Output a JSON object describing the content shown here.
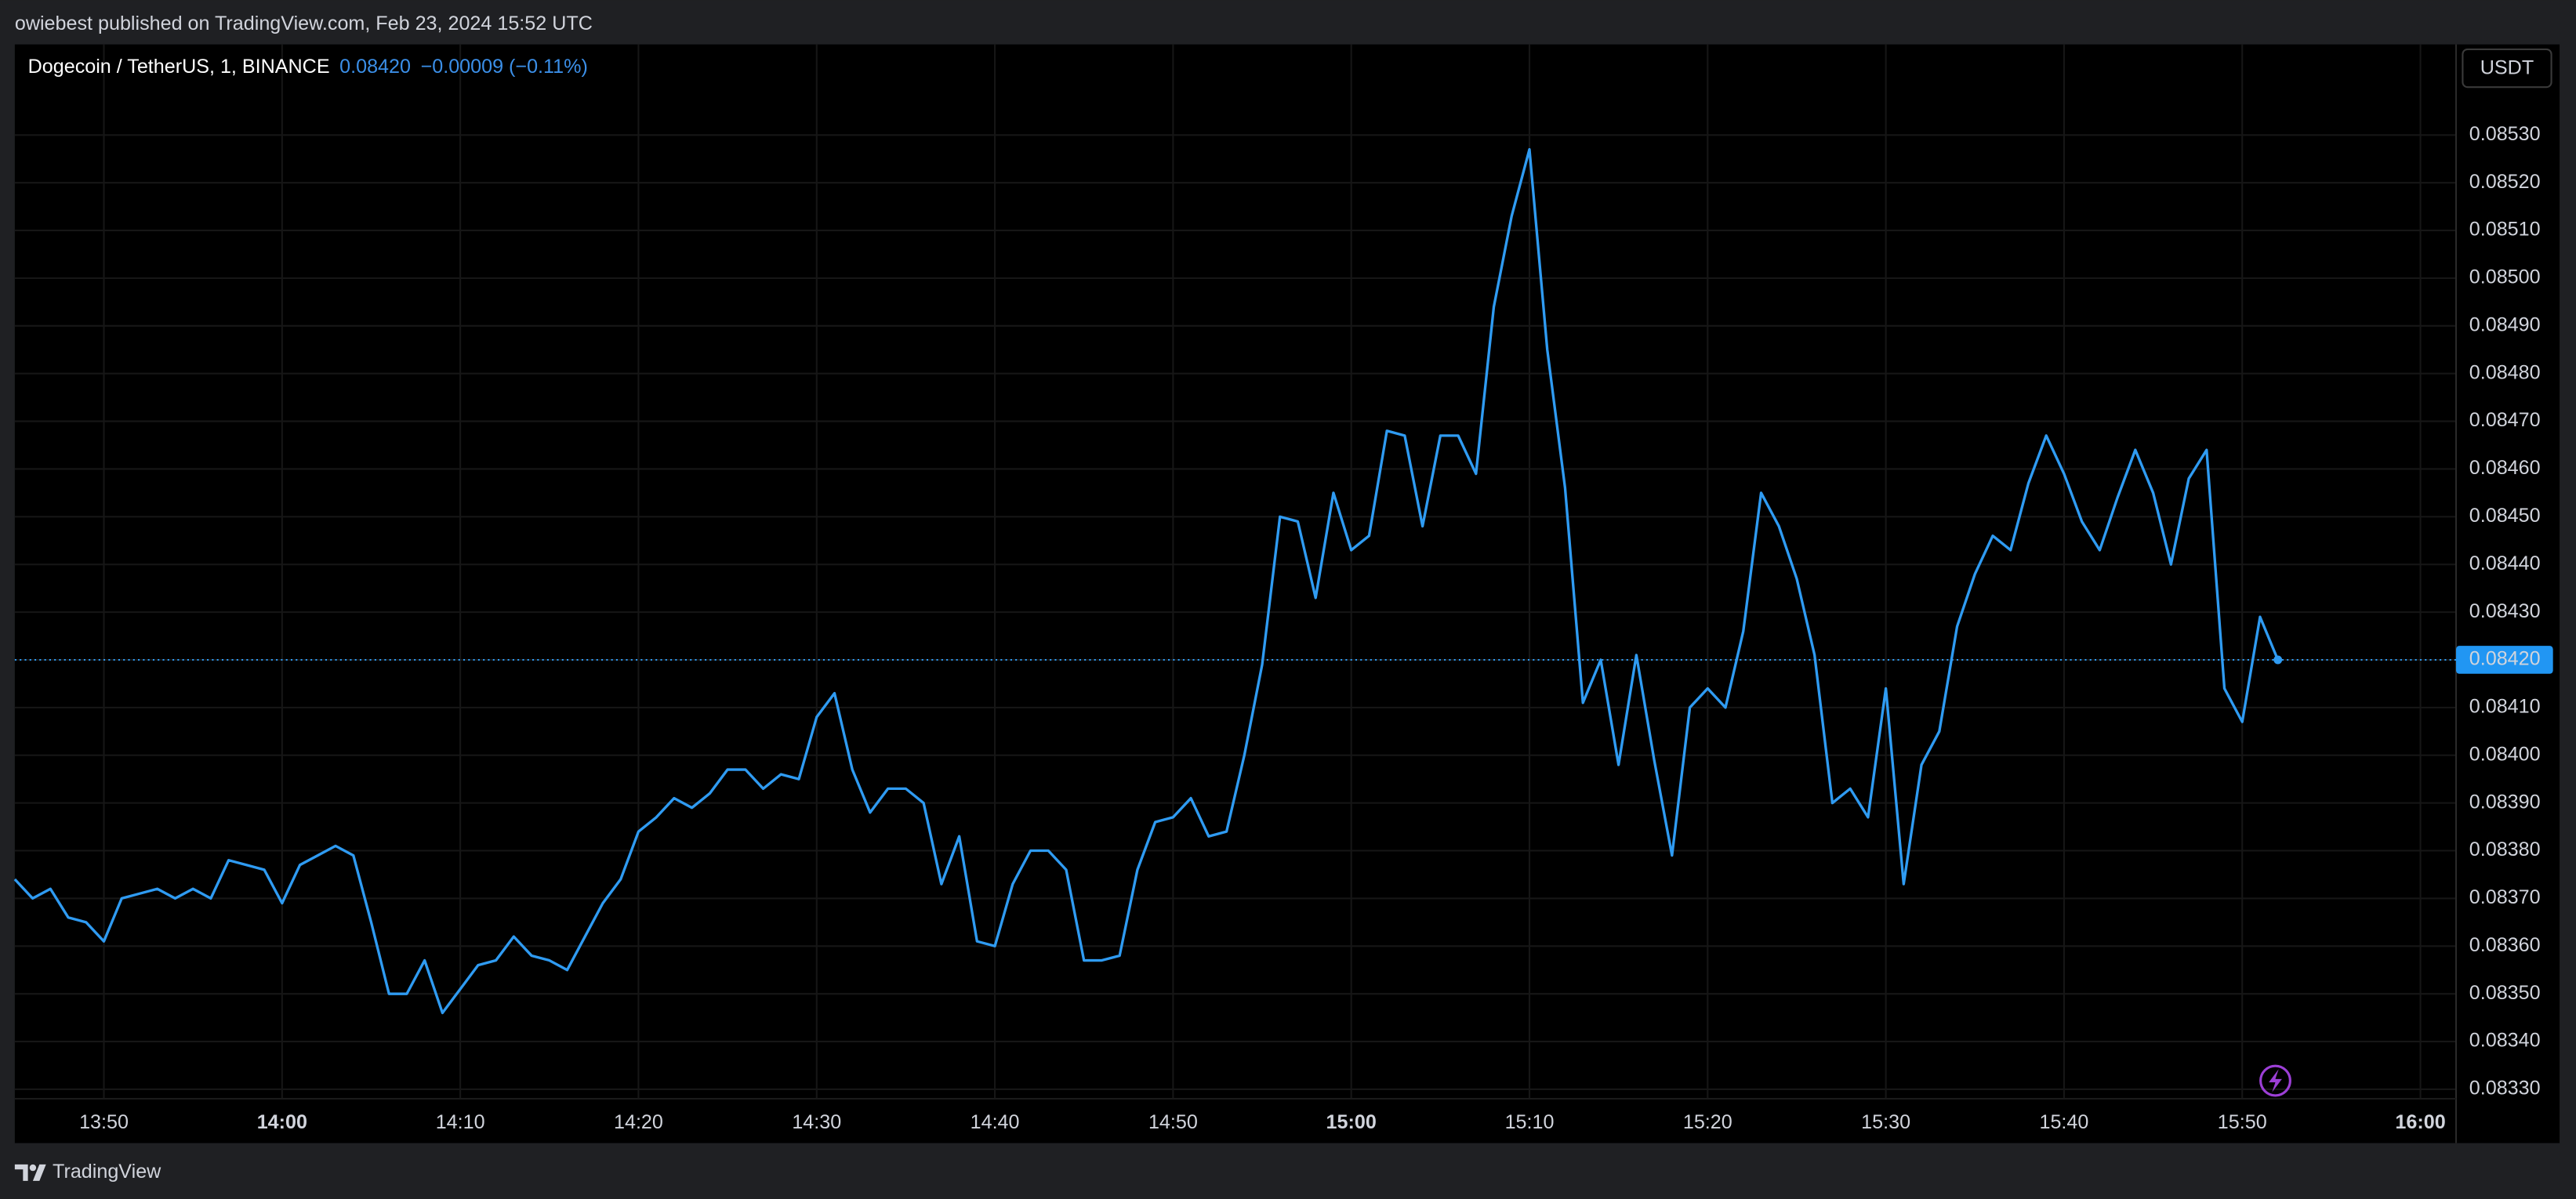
{
  "header": "owiebest published on TradingView.com, Feb 23, 2024 15:52 UTC",
  "footer_brand": "TradingView",
  "currency": "USDT",
  "chart_data": {
    "type": "line",
    "legend_last": "0.08420",
    "legend_change": "−0.00009 (−0.11%)",
    "last_price": {
      "value": 0.0842,
      "label": "0.08420"
    },
    "grid": true,
    "x": [
      "13:45",
      "13:46",
      "13:47",
      "13:48",
      "13:49",
      "13:50",
      "13:51",
      "13:52",
      "13:53",
      "13:54",
      "13:55",
      "13:56",
      "13:57",
      "13:58",
      "13:59",
      "14:00",
      "14:01",
      "14:02",
      "14:03",
      "14:04",
      "14:05",
      "14:06",
      "14:07",
      "14:08",
      "14:09",
      "14:10",
      "14:11",
      "14:12",
      "14:13",
      "14:14",
      "14:15",
      "14:16",
      "14:17",
      "14:18",
      "14:19",
      "14:20",
      "14:21",
      "14:22",
      "14:23",
      "14:24",
      "14:25",
      "14:26",
      "14:27",
      "14:28",
      "14:29",
      "14:30",
      "14:31",
      "14:32",
      "14:33",
      "14:34",
      "14:35",
      "14:36",
      "14:37",
      "14:38",
      "14:39",
      "14:40",
      "14:41",
      "14:42",
      "14:43",
      "14:44",
      "14:45",
      "14:46",
      "14:47",
      "14:48",
      "14:49",
      "14:50",
      "14:51",
      "14:52",
      "14:53",
      "14:54",
      "14:55",
      "14:56",
      "14:57",
      "14:58",
      "14:59",
      "15:00",
      "15:01",
      "15:02",
      "15:03",
      "15:04",
      "15:05",
      "15:06",
      "15:07",
      "15:08",
      "15:09",
      "15:10",
      "15:11",
      "15:12",
      "15:13",
      "15:14",
      "15:15",
      "15:16",
      "15:17",
      "15:18",
      "15:19",
      "15:20",
      "15:21",
      "15:22",
      "15:23",
      "15:24",
      "15:25",
      "15:26",
      "15:27",
      "15:28",
      "15:29",
      "15:30",
      "15:31",
      "15:32",
      "15:33",
      "15:34",
      "15:35",
      "15:36",
      "15:37",
      "15:38",
      "15:39",
      "15:40",
      "15:41",
      "15:42",
      "15:43",
      "15:44",
      "15:45",
      "15:46",
      "15:47",
      "15:48",
      "15:49",
      "15:50",
      "15:51",
      "15:52"
    ],
    "series": [
      {
        "name": "Dogecoin / TetherUS, 1, BINANCE",
        "color": "#2f9bf2",
        "values": [
          0.08374,
          0.0837,
          0.08372,
          0.08366,
          0.08365,
          0.08361,
          0.0837,
          0.08371,
          0.08372,
          0.0837,
          0.08372,
          0.0837,
          0.08378,
          0.08377,
          0.08376,
          0.08369,
          0.08377,
          0.08379,
          0.08381,
          0.08379,
          0.08365,
          0.0835,
          0.0835,
          0.08357,
          0.08346,
          0.08351,
          0.08356,
          0.08357,
          0.08362,
          0.08358,
          0.08357,
          0.08355,
          0.08362,
          0.08369,
          0.08374,
          0.08384,
          0.08387,
          0.08391,
          0.08389,
          0.08392,
          0.08397,
          0.08397,
          0.08393,
          0.08396,
          0.08395,
          0.08408,
          0.08413,
          0.08397,
          0.08388,
          0.08393,
          0.08393,
          0.0839,
          0.08373,
          0.08383,
          0.08361,
          0.0836,
          0.08373,
          0.0838,
          0.0838,
          0.08376,
          0.08357,
          0.08357,
          0.08358,
          0.08376,
          0.08386,
          0.08387,
          0.08391,
          0.08383,
          0.08384,
          0.084,
          0.08419,
          0.0845,
          0.08449,
          0.08433,
          0.08455,
          0.08443,
          0.08446,
          0.08468,
          0.08467,
          0.08448,
          0.08467,
          0.08467,
          0.08459,
          0.08494,
          0.08513,
          0.08527,
          0.08485,
          0.08456,
          0.08411,
          0.0842,
          0.08398,
          0.08421,
          0.08399,
          0.08379,
          0.0841,
          0.08414,
          0.0841,
          0.08426,
          0.08455,
          0.08448,
          0.08437,
          0.08421,
          0.0839,
          0.08393,
          0.08387,
          0.08414,
          0.08373,
          0.08398,
          0.08405,
          0.08427,
          0.08438,
          0.08446,
          0.08443,
          0.08457,
          0.08467,
          0.08459,
          0.08449,
          0.08443,
          0.08454,
          0.08464,
          0.08455,
          0.0844,
          0.08458,
          0.08464,
          0.08414,
          0.08407,
          0.08429,
          0.0842
        ]
      }
    ],
    "xlim": [
      "13:45",
      "16:02"
    ],
    "xticks": [
      "13:50",
      "14:00",
      "14:10",
      "14:20",
      "14:30",
      "14:40",
      "14:50",
      "15:00",
      "15:10",
      "15:20",
      "15:30",
      "15:40",
      "15:50",
      "16:00"
    ],
    "ylim": [
      0.08328,
      0.08549
    ],
    "yticks": [
      {
        "value": 0.0833,
        "label": "0.08330"
      },
      {
        "value": 0.0834,
        "label": "0.08340"
      },
      {
        "value": 0.0835,
        "label": "0.08350"
      },
      {
        "value": 0.0836,
        "label": "0.08360"
      },
      {
        "value": 0.0837,
        "label": "0.08370"
      },
      {
        "value": 0.0838,
        "label": "0.08380"
      },
      {
        "value": 0.0839,
        "label": "0.08390"
      },
      {
        "value": 0.084,
        "label": "0.08400"
      },
      {
        "value": 0.0841,
        "label": "0.08410"
      },
      {
        "value": 0.0842,
        "label": "0.08420"
      },
      {
        "value": 0.0843,
        "label": "0.08430"
      },
      {
        "value": 0.0844,
        "label": "0.08440"
      },
      {
        "value": 0.0845,
        "label": "0.08450"
      },
      {
        "value": 0.0846,
        "label": "0.08460"
      },
      {
        "value": 0.0847,
        "label": "0.08470"
      },
      {
        "value": 0.0848,
        "label": "0.08480"
      },
      {
        "value": 0.0849,
        "label": "0.08490"
      },
      {
        "value": 0.085,
        "label": "0.08500"
      },
      {
        "value": 0.0851,
        "label": "0.08510"
      },
      {
        "value": 0.0852,
        "label": "0.08520"
      },
      {
        "value": 0.0853,
        "label": "0.08530"
      }
    ]
  }
}
